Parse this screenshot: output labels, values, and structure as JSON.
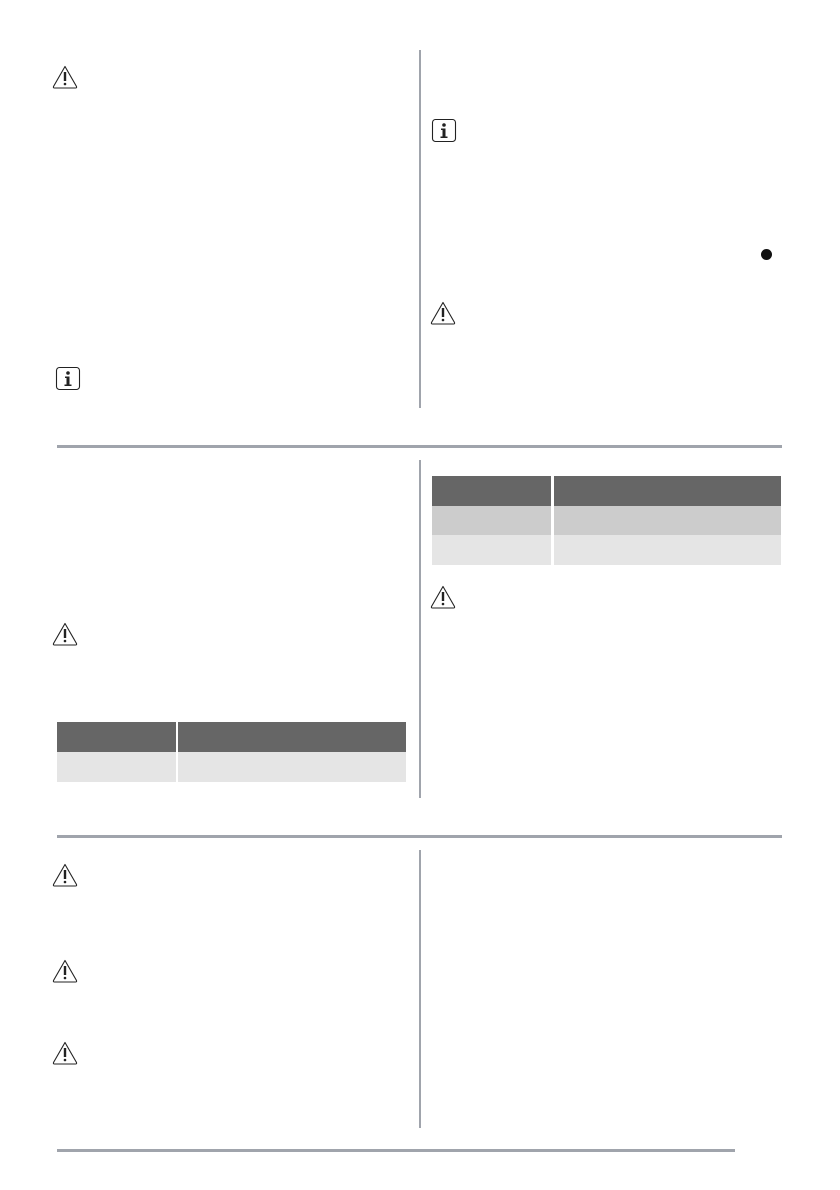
{
  "colors": {
    "rule": "#a0a4ac",
    "table_header": "#666666",
    "table_row_dark": "#cccccc",
    "table_row_light": "#e5e5e5",
    "icon_stroke": "#222222"
  },
  "icons": {
    "warning": "warning-triangle-icon",
    "info": "info-icon",
    "bullet": "bullet-dot-icon"
  },
  "tables": [
    {
      "columns": 2,
      "header_rows": 1,
      "body_rows": 1
    },
    {
      "columns": 2,
      "header_rows": 1,
      "body_rows": 2
    }
  ]
}
